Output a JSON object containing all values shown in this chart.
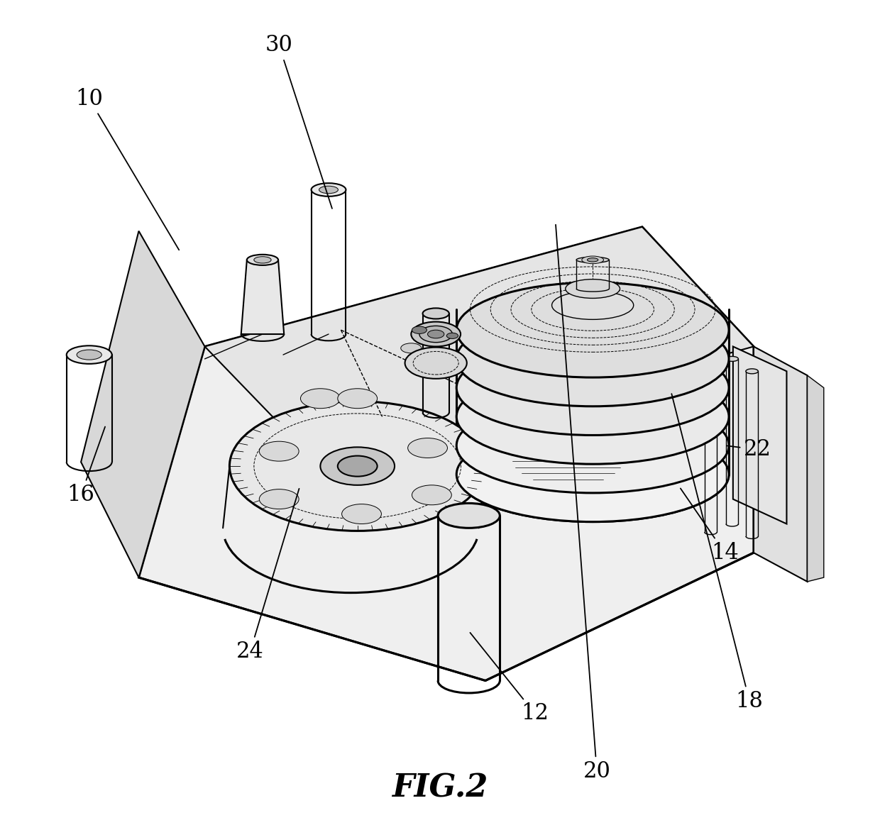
{
  "fig_label": "FIG.2",
  "fig_label_fontsize": 32,
  "label_fontsize": 22,
  "background": "#ffffff",
  "labels": {
    "10": {
      "text": [
        0.075,
        0.88
      ],
      "arrow": [
        0.185,
        0.695
      ]
    },
    "12": {
      "text": [
        0.615,
        0.135
      ],
      "arrow": [
        0.535,
        0.235
      ]
    },
    "14": {
      "text": [
        0.845,
        0.33
      ],
      "arrow": [
        0.79,
        0.41
      ]
    },
    "16": {
      "text": [
        0.065,
        0.4
      ],
      "arrow": [
        0.095,
        0.485
      ]
    },
    "18": {
      "text": [
        0.875,
        0.15
      ],
      "arrow": [
        0.78,
        0.525
      ]
    },
    "20": {
      "text": [
        0.69,
        0.065
      ],
      "arrow": [
        0.64,
        0.73
      ]
    },
    "22": {
      "text": [
        0.885,
        0.455
      ],
      "arrow": [
        0.845,
        0.46
      ]
    },
    "24": {
      "text": [
        0.27,
        0.21
      ],
      "arrow": [
        0.33,
        0.41
      ]
    },
    "30": {
      "text": [
        0.305,
        0.945
      ],
      "arrow": [
        0.37,
        0.745
      ]
    }
  }
}
